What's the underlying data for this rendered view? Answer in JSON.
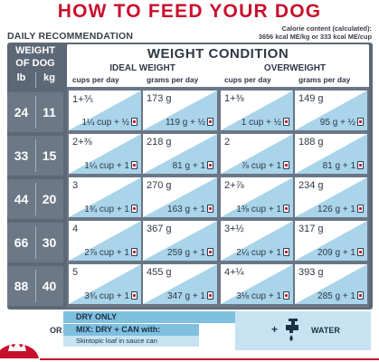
{
  "title": "HOW TO FEED YOUR DOG",
  "daily_recommendation": "DAILY RECOMMENDATION",
  "calorie": {
    "line1": "Calorie content (calculated):",
    "line2": "3656 kcal ME/kg or 333 kcal ME/cup"
  },
  "dog_header": {
    "line1": "WEIGHT",
    "line2": "OF DOG",
    "unit_lb": "lb",
    "unit_kg": "kg"
  },
  "condition_header": "WEIGHT CONDITION",
  "ideal_header": "IDEAL WEIGHT",
  "over_header": "OVERWEIGHT",
  "col_cups": "cups per day",
  "col_grams": "grams per day",
  "rows": [
    {
      "lb": "24",
      "kg": "11",
      "ideal_cups": "1+⅗",
      "ideal_cups_mix": "1¼ cup + ½",
      "ideal_grams": "173 g",
      "ideal_grams_mix": "119 g + ½",
      "over_cups": "1+⅜",
      "over_cups_mix": "1 cup + ½",
      "over_grams": "149 g",
      "over_grams_mix": "95 g + ½"
    },
    {
      "lb": "33",
      "kg": "15",
      "ideal_cups": "2+⅜",
      "ideal_cups_mix": "1¼ cup + 1",
      "ideal_grams": "218 g",
      "ideal_grams_mix": "81 g + 1",
      "over_cups": "2",
      "over_cups_mix": "⅞ cup + 1",
      "over_grams": "188 g",
      "over_grams_mix": "81 g + 1"
    },
    {
      "lb": "44",
      "kg": "20",
      "ideal_cups": "3",
      "ideal_cups_mix": "1¾ cup + 1",
      "ideal_grams": "270 g",
      "ideal_grams_mix": "163 g + 1",
      "over_cups": "2+⅞",
      "over_cups_mix": "1⅜ cup + 1",
      "over_grams": "234 g",
      "over_grams_mix": "126 g + 1"
    },
    {
      "lb": "66",
      "kg": "30",
      "ideal_cups": "4",
      "ideal_cups_mix": "2⅞ cup + 1",
      "ideal_grams": "367 g",
      "ideal_grams_mix": "259 g + 1",
      "over_cups": "3+½",
      "over_cups_mix": "2¼ cup + 1",
      "over_grams": "317 g",
      "over_grams_mix": "209 g + 1"
    },
    {
      "lb": "88",
      "kg": "40",
      "ideal_cups": "5",
      "ideal_cups_mix": "3¾ cup + 1",
      "ideal_grams": "455 g",
      "ideal_grams_mix": "347 g + 1",
      "over_cups": "4+¼",
      "over_cups_mix": "3⅛ cup + 1",
      "over_grams": "393 g",
      "over_grams_mix": "285 g + 1"
    }
  ],
  "legend": {
    "dry_only": "DRY ONLY",
    "or": "OR",
    "mix": "MIX: DRY + CAN with:",
    "mix_sub": "Skintopic loaf in sauce can",
    "plus": "+",
    "water": "WATER"
  },
  "colors": {
    "brand_red": "#c8102e",
    "frame_slate": "#5d6877",
    "legend_blue": "#7fbfe0",
    "legend_light_blue": "#c7e3f2"
  },
  "icons": {
    "can": "can-icon",
    "water": "water-tap-icon",
    "logo": "royal-canin-crown-logo"
  }
}
